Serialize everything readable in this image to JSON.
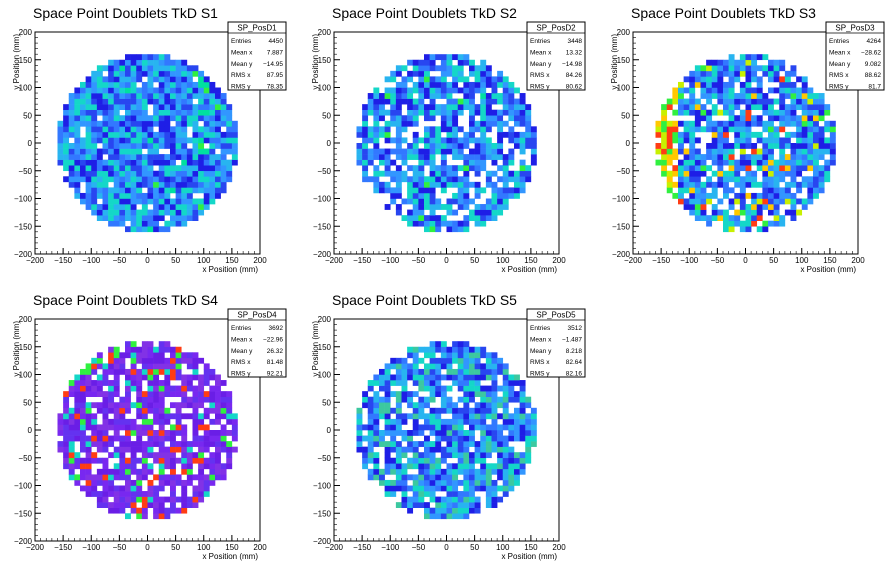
{
  "chart_data": [
    {
      "type": "heatmap",
      "title": "Space Point Doublets TkD S1",
      "xlabel": "x Position (mm)",
      "ylabel": "y Position (mm)",
      "xlim": [
        -200,
        200
      ],
      "ylim": [
        -200,
        200
      ],
      "xticks": [
        -200,
        -150,
        -100,
        -50,
        0,
        50,
        100,
        150,
        200
      ],
      "yticks": [
        -200,
        -150,
        -100,
        -50,
        0,
        50,
        100,
        150,
        200
      ],
      "grid": false,
      "region": {
        "shape": "circle",
        "center": [
          0,
          0
        ],
        "radius": 160
      },
      "bin_size_mm": 10,
      "stats": {
        "name": "SP_PosD1",
        "rows": [
          {
            "label": "Entries",
            "value": "4450"
          },
          {
            "label": "Mean x",
            "value": "7.887"
          },
          {
            "label": "Mean y",
            "value": "−14.95"
          },
          {
            "label": "RMS x",
            "value": "87.95"
          },
          {
            "label": "RMS y",
            "value": "78.35"
          }
        ]
      },
      "seed": 11,
      "empty_fraction": 0.06,
      "palette": [
        "#1e1ee6",
        "#2846f0",
        "#3278ff",
        "#3296ff",
        "#28b4f0",
        "#14d7c8"
      ],
      "hot_palette": [
        "#00e0a0",
        "#30f040"
      ],
      "hot_band": {
        "x_from": 90,
        "x_to": 110
      },
      "hot_fraction": 0.06
    },
    {
      "type": "heatmap",
      "title": "Space Point Doublets TkD S2",
      "xlabel": "x Position (mm)",
      "ylabel": "y Position (mm)",
      "xlim": [
        -200,
        200
      ],
      "ylim": [
        -200,
        200
      ],
      "xticks": [
        -200,
        -150,
        -100,
        -50,
        0,
        50,
        100,
        150,
        200
      ],
      "yticks": [
        -200,
        -150,
        -100,
        -50,
        0,
        50,
        100,
        150,
        200
      ],
      "grid": false,
      "region": {
        "shape": "circle",
        "center": [
          0,
          0
        ],
        "radius": 160
      },
      "bin_size_mm": 10,
      "stats": {
        "name": "SP_PosD2",
        "rows": [
          {
            "label": "Entries",
            "value": "3448"
          },
          {
            "label": "Mean x",
            "value": "13.32"
          },
          {
            "label": "Mean y",
            "value": "−14.98"
          },
          {
            "label": "RMS x",
            "value": "84.26"
          },
          {
            "label": "RMS y",
            "value": "80.62"
          }
        ]
      },
      "seed": 23,
      "empty_fraction": 0.2,
      "palette": [
        "#1e1ee6",
        "#2846f0",
        "#3278ff",
        "#3296ff",
        "#28b4f0",
        "#14d7c8"
      ],
      "hot_palette": [
        "#00e0a0",
        "#30f040"
      ],
      "hot_fraction": 0.04
    },
    {
      "type": "heatmap",
      "title": "Space Point Doublets TkD S3",
      "xlabel": "x Position (mm)",
      "ylabel": "y Position (mm)",
      "xlim": [
        -200,
        200
      ],
      "ylim": [
        -200,
        200
      ],
      "xticks": [
        -200,
        -150,
        -100,
        -50,
        0,
        50,
        100,
        150,
        200
      ],
      "yticks": [
        -200,
        -150,
        -100,
        -50,
        0,
        50,
        100,
        150,
        200
      ],
      "grid": false,
      "region": {
        "shape": "circle",
        "center": [
          0,
          0
        ],
        "radius": 160
      },
      "bin_size_mm": 10,
      "stats": {
        "name": "SP_PosD3",
        "rows": [
          {
            "label": "Entries",
            "value": "4264"
          },
          {
            "label": "Mean x",
            "value": "−28.62"
          },
          {
            "label": "Mean y",
            "value": "9.082"
          },
          {
            "label": "RMS x",
            "value": "88.62"
          },
          {
            "label": "RMS y",
            "value": "81.7"
          }
        ]
      },
      "seed": 37,
      "empty_fraction": 0.16,
      "palette": [
        "#1e1ee6",
        "#2846f0",
        "#3278ff",
        "#3296ff",
        "#28b4f0",
        "#14d7c8"
      ],
      "hot_palette": [
        "#30f040",
        "#c8f000",
        "#ffc800",
        "#ff3c14"
      ],
      "hot_band": {
        "x_from": -160,
        "x_to": -120
      },
      "hot_fraction": 0.45
    },
    {
      "type": "heatmap",
      "title": "Space Point Doublets TkD S4",
      "xlabel": "x Position (mm)",
      "ylabel": "y Position (mm)",
      "xlim": [
        -200,
        200
      ],
      "ylim": [
        -200,
        200
      ],
      "xticks": [
        -200,
        -150,
        -100,
        -50,
        0,
        50,
        100,
        150,
        200
      ],
      "yticks": [
        -200,
        -150,
        -100,
        -50,
        0,
        50,
        100,
        150,
        200
      ],
      "grid": false,
      "region": {
        "shape": "circle",
        "center": [
          0,
          0
        ],
        "radius": 160
      },
      "bin_size_mm": 10,
      "stats": {
        "name": "SP_PosD4",
        "rows": [
          {
            "label": "Entries",
            "value": "3692"
          },
          {
            "label": "Mean x",
            "value": "−22.96"
          },
          {
            "label": "Mean y",
            "value": "26.32"
          },
          {
            "label": "RMS x",
            "value": "81.48"
          },
          {
            "label": "RMS y",
            "value": "92.21"
          }
        ]
      },
      "seed": 41,
      "empty_fraction": 0.18,
      "palette": [
        "#6a1ee6",
        "#7828f0",
        "#6432f0",
        "#8232e6"
      ],
      "hot_palette": [
        "#14d7c8",
        "#30f040",
        "#ff3c14"
      ],
      "hot_diagonal": {
        "from": [
          -150,
          90
        ],
        "to": [
          -40,
          160
        ],
        "width": 12
      },
      "hot_fraction": 0.8
    },
    {
      "type": "heatmap",
      "title": "Space Point Doublets TkD S5",
      "xlabel": "x Position (mm)",
      "ylabel": "y Position (mm)",
      "xlim": [
        -200,
        200
      ],
      "ylim": [
        -200,
        200
      ],
      "xticks": [
        -200,
        -150,
        -100,
        -50,
        0,
        50,
        100,
        150,
        200
      ],
      "yticks": [
        -200,
        -150,
        -100,
        -50,
        0,
        50,
        100,
        150,
        200
      ],
      "grid": false,
      "region": {
        "shape": "circle",
        "center": [
          0,
          0
        ],
        "radius": 160
      },
      "bin_size_mm": 10,
      "stats": {
        "name": "SP_PosD5",
        "rows": [
          {
            "label": "Entries",
            "value": "3512"
          },
          {
            "label": "Mean x",
            "value": "−1.487"
          },
          {
            "label": "Mean y",
            "value": "8.218"
          },
          {
            "label": "RMS x",
            "value": "82.64"
          },
          {
            "label": "RMS y",
            "value": "82.16"
          }
        ]
      },
      "seed": 53,
      "empty_fraction": 0.18,
      "palette": [
        "#1e1ee6",
        "#2846f0",
        "#3278ff",
        "#3296ff",
        "#28b4f0",
        "#14d7c8",
        "#3cc8a0"
      ],
      "hot_palette": [
        "#30f040",
        "#ffc800",
        "#ff3c14"
      ],
      "hot_fraction": 0.02
    }
  ]
}
